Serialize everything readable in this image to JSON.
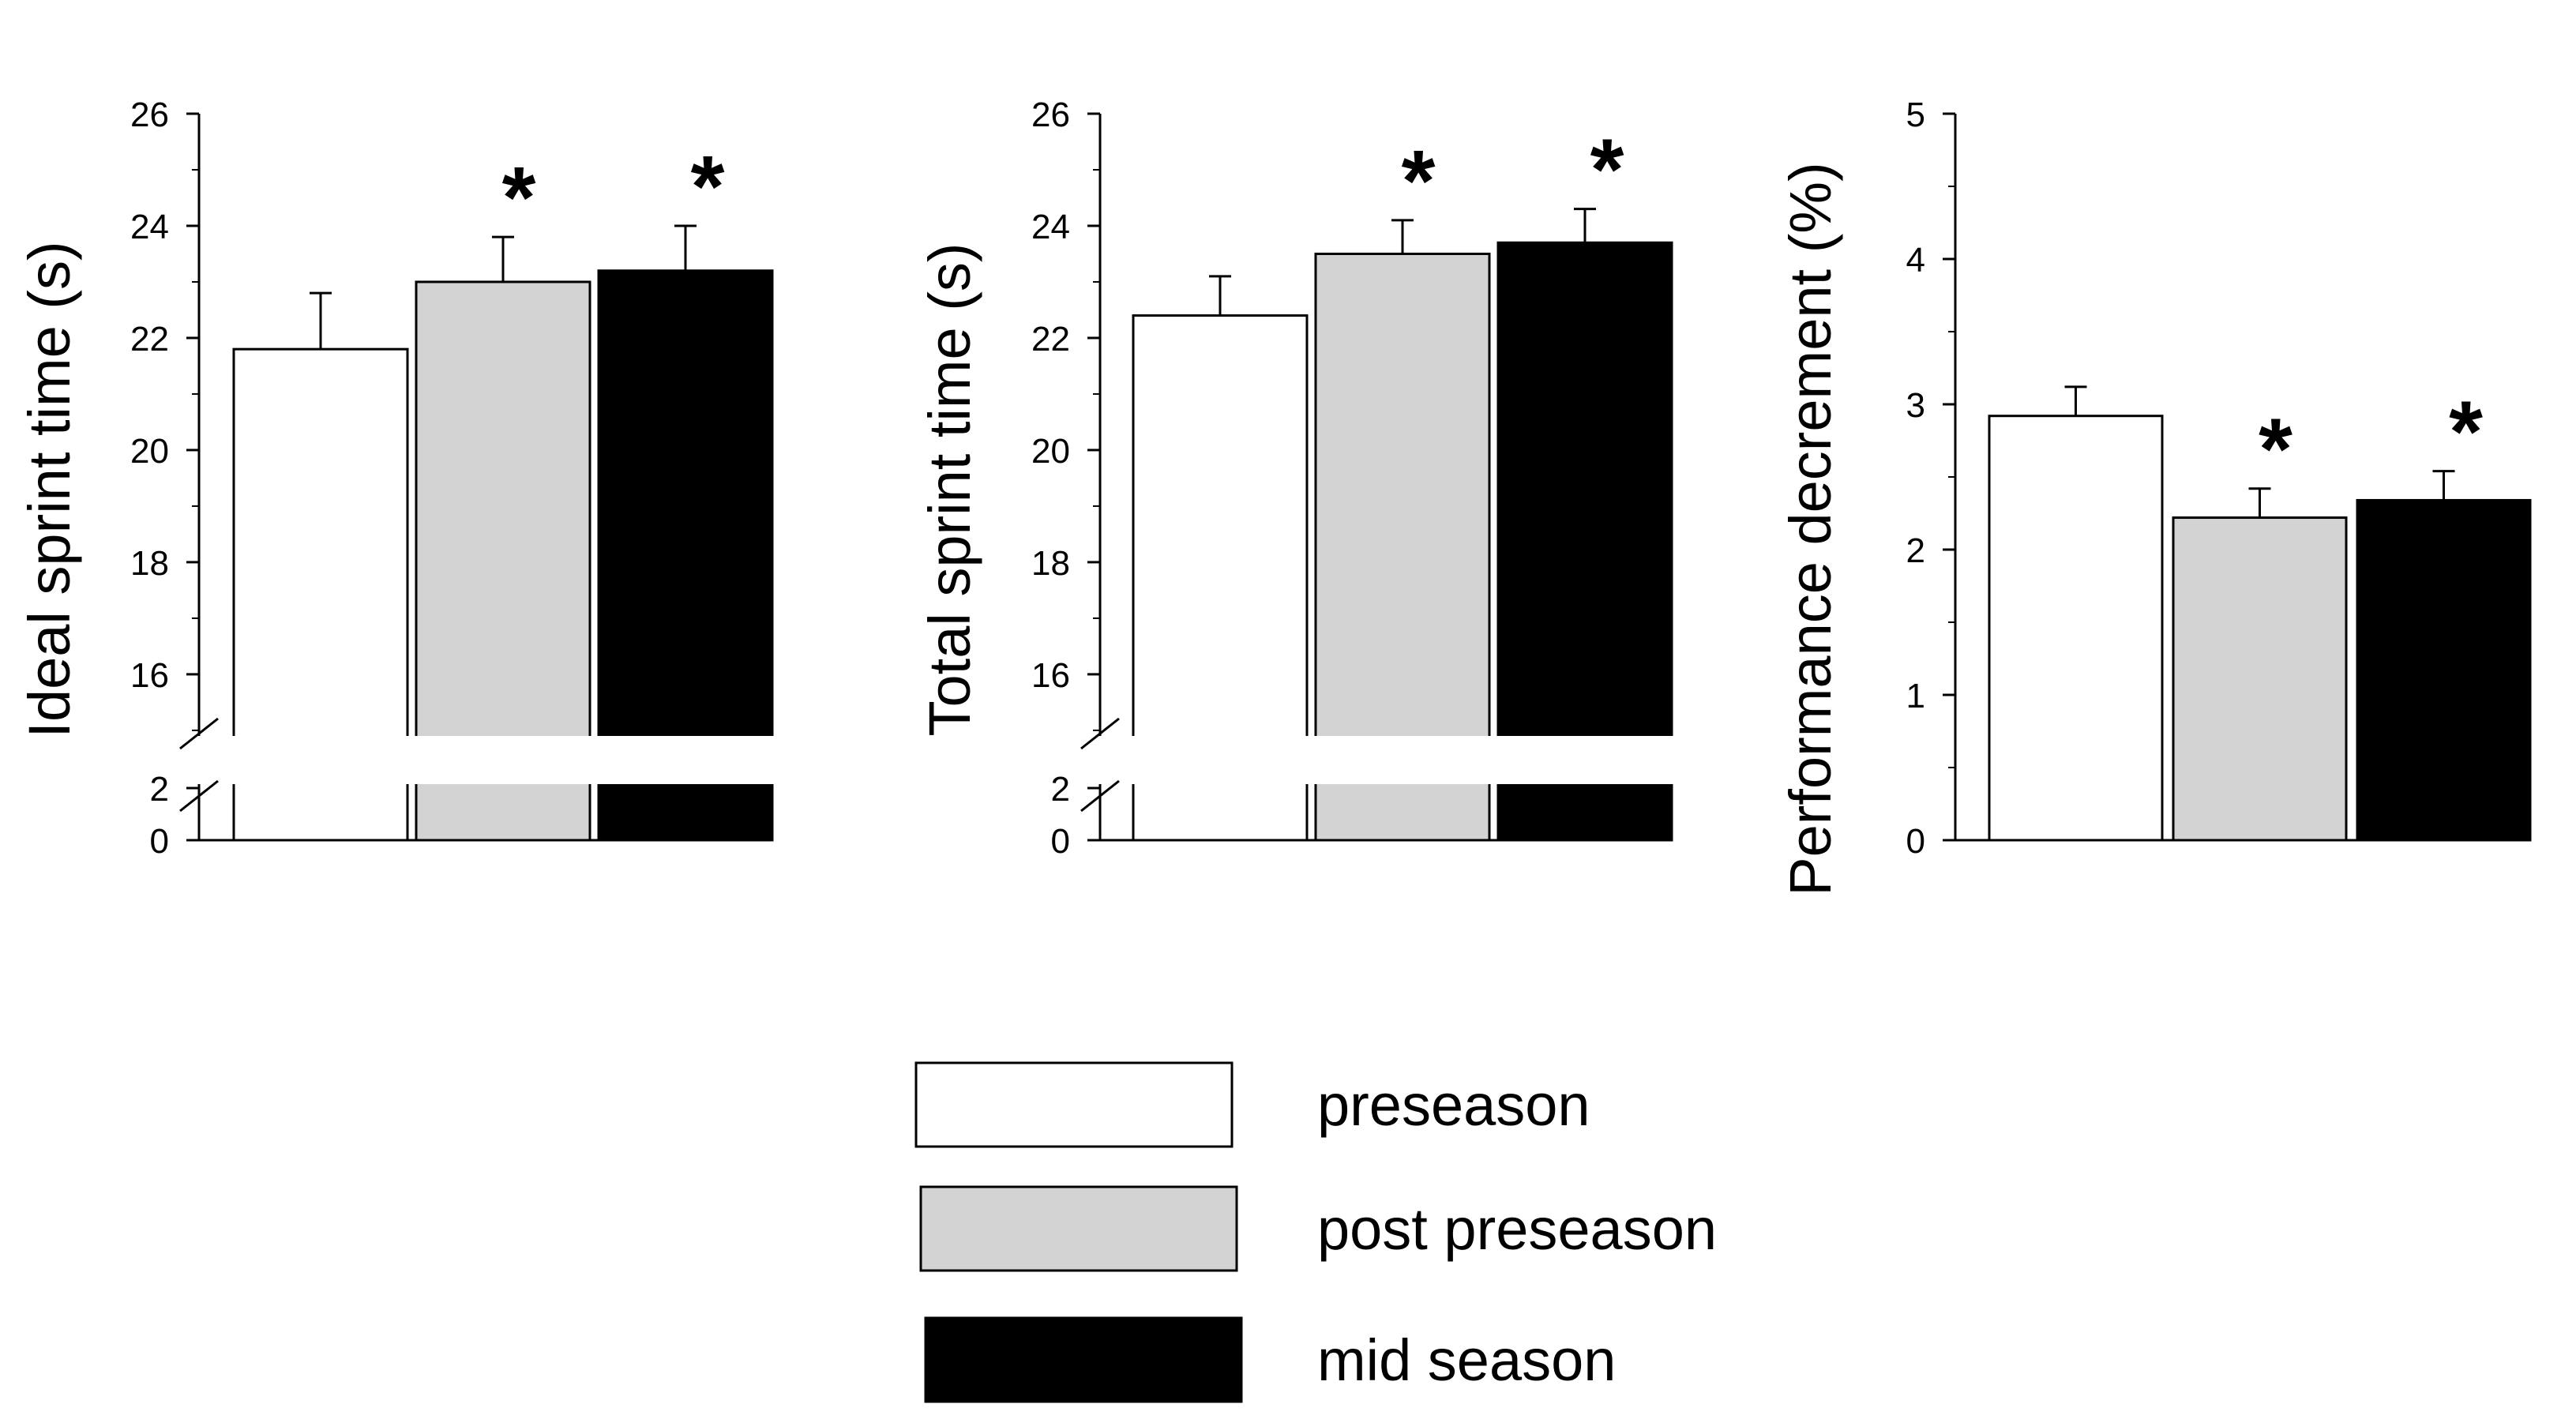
{
  "colors": {
    "preseason": "#ffffff",
    "post_preseason": "#d3d3d3",
    "mid_season": "#000000",
    "axis": "#000000"
  },
  "legend": {
    "items": [
      {
        "label": "preseason",
        "color": "#ffffff"
      },
      {
        "label": "post preseason",
        "color": "#d3d3d3"
      },
      {
        "label": "mid season",
        "color": "#000000"
      }
    ]
  },
  "chart_data": [
    {
      "type": "bar",
      "title": "",
      "xlabel": "",
      "ylabel": "Ideal sprint time (s)",
      "categories": [
        "preseason",
        "post preseason",
        "mid season"
      ],
      "values": [
        21.8,
        23.0,
        23.2
      ],
      "errors": [
        1.0,
        0.8,
        0.8
      ],
      "significant": [
        "",
        "*",
        "*"
      ],
      "ylim": [
        14.9,
        26
      ],
      "axis_break": true,
      "yticks": [
        16,
        18,
        20,
        22,
        24,
        26
      ],
      "lower_ticks": [
        0,
        2
      ]
    },
    {
      "type": "bar",
      "title": "",
      "xlabel": "",
      "ylabel": "Total sprint time (s)",
      "categories": [
        "preseason",
        "post preseason",
        "mid season"
      ],
      "values": [
        22.4,
        23.5,
        23.7
      ],
      "errors": [
        0.7,
        0.6,
        0.6
      ],
      "significant": [
        "",
        "*",
        "*"
      ],
      "ylim": [
        14.9,
        26
      ],
      "axis_break": true,
      "yticks": [
        16,
        18,
        20,
        22,
        24,
        26
      ],
      "lower_ticks": [
        0,
        2
      ]
    },
    {
      "type": "bar",
      "title": "",
      "xlabel": "",
      "ylabel": "Performance decrement (%)",
      "categories": [
        "preseason",
        "post preseason",
        "mid season"
      ],
      "values": [
        2.92,
        2.22,
        2.34
      ],
      "errors": [
        0.2,
        0.2,
        0.2
      ],
      "significant": [
        "",
        "*",
        "*"
      ],
      "ylim": [
        0,
        5
      ],
      "axis_break": false,
      "yticks": [
        0,
        1,
        2,
        3,
        4,
        5
      ]
    }
  ]
}
